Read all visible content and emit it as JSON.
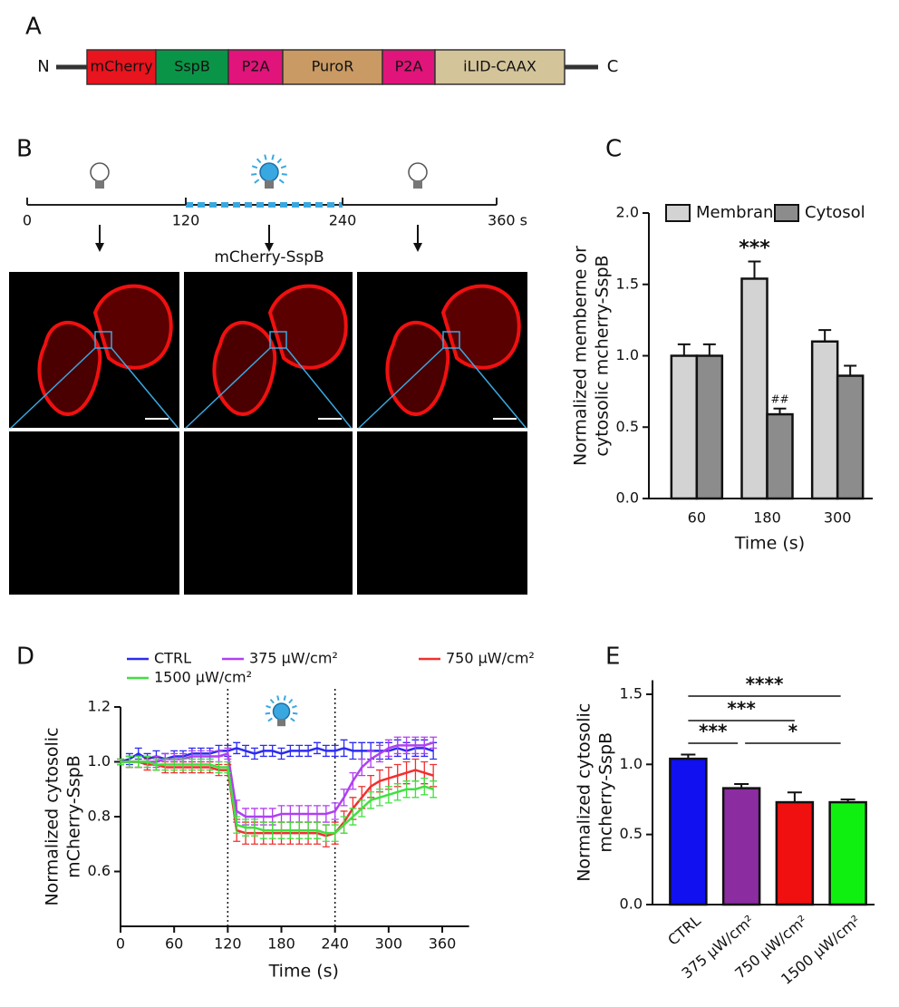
{
  "panel_labels": [
    "A",
    "B",
    "C",
    "D",
    "E"
  ],
  "construct": {
    "n": "N",
    "c": "C",
    "segments": [
      "mCherry",
      "SspB",
      "P2A",
      "PuroR",
      "P2A",
      "iLID-CAAX"
    ]
  },
  "timeline": {
    "ticks": [
      "0",
      "120",
      "240",
      "360 s"
    ],
    "image_label": "mCherry-SspB"
  },
  "chart_data": [
    {
      "type": "bar",
      "categories": [
        "60",
        "180",
        "300"
      ],
      "series": [
        {
          "name": "Membrane",
          "color": "#d3d3d3",
          "values": [
            1.0,
            1.54,
            1.1
          ],
          "errors": [
            0.08,
            0.12,
            0.08
          ]
        },
        {
          "name": "Cytosol",
          "color": "#8c8c8c",
          "values": [
            1.0,
            0.59,
            0.86
          ],
          "errors": [
            0.08,
            0.04,
            0.07
          ]
        }
      ],
      "ylim": [
        0,
        2
      ],
      "yticks": [
        {
          "value": 0,
          "label": "0.0"
        },
        0.5,
        {
          "value": 1,
          "label": "1.0"
        },
        1.5,
        {
          "value": 2,
          "label": "2.0"
        }
      ],
      "ylabel": [
        "Normalized memberne or",
        "cytosolic mcherry-SspB"
      ],
      "xlabel": "Time (s)",
      "annotations": [
        "***",
        "##"
      ],
      "legend": "top"
    },
    {
      "type": "line",
      "x": [
        0,
        10,
        20,
        30,
        40,
        50,
        60,
        70,
        80,
        90,
        100,
        110,
        120,
        130,
        140,
        150,
        160,
        170,
        180,
        190,
        200,
        210,
        220,
        230,
        240,
        250,
        260,
        270,
        280,
        290,
        300,
        310,
        320,
        330,
        340,
        350
      ],
      "series": [
        {
          "name": "CTRL",
          "color": "#2b2bf0",
          "values": [
            1.0,
            1.01,
            1.03,
            1.01,
            1.02,
            1.01,
            1.02,
            1.02,
            1.03,
            1.03,
            1.03,
            1.04,
            1.04,
            1.05,
            1.04,
            1.03,
            1.04,
            1.04,
            1.03,
            1.04,
            1.04,
            1.04,
            1.05,
            1.04,
            1.04,
            1.05,
            1.04,
            1.04,
            1.04,
            1.04,
            1.04,
            1.05,
            1.04,
            1.05,
            1.05,
            1.04
          ],
          "errors": [
            0.01,
            0.02,
            0.02,
            0.02,
            0.02,
            0.02,
            0.02,
            0.02,
            0.02,
            0.02,
            0.02,
            0.02,
            0.02,
            0.02,
            0.02,
            0.02,
            0.02,
            0.02,
            0.02,
            0.02,
            0.02,
            0.02,
            0.02,
            0.02,
            0.02,
            0.03,
            0.03,
            0.03,
            0.03,
            0.03,
            0.03,
            0.03,
            0.03,
            0.03,
            0.03,
            0.03
          ]
        },
        {
          "name": "375 μW/cm²",
          "color": "#b040f0",
          "values": [
            1.0,
            1.0,
            1.0,
            1.0,
            1.0,
            1.01,
            1.01,
            1.01,
            1.02,
            1.02,
            1.02,
            1.02,
            1.03,
            0.82,
            0.8,
            0.8,
            0.8,
            0.8,
            0.81,
            0.81,
            0.81,
            0.81,
            0.81,
            0.81,
            0.82,
            0.87,
            0.93,
            0.98,
            1.01,
            1.03,
            1.05,
            1.06,
            1.06,
            1.06,
            1.06,
            1.07
          ],
          "errors": [
            0.01,
            0.02,
            0.02,
            0.02,
            0.02,
            0.02,
            0.02,
            0.02,
            0.02,
            0.02,
            0.02,
            0.02,
            0.02,
            0.04,
            0.03,
            0.03,
            0.03,
            0.03,
            0.03,
            0.03,
            0.03,
            0.03,
            0.03,
            0.03,
            0.03,
            0.03,
            0.03,
            0.03,
            0.03,
            0.03,
            0.03,
            0.03,
            0.03,
            0.03,
            0.03,
            0.02
          ]
        },
        {
          "name": "750 μW/cm²",
          "color": "#f03030",
          "values": [
            1.0,
            1.0,
            1.0,
            0.99,
            0.99,
            0.98,
            0.98,
            0.98,
            0.98,
            0.98,
            0.98,
            0.97,
            0.97,
            0.75,
            0.74,
            0.74,
            0.74,
            0.74,
            0.74,
            0.74,
            0.74,
            0.74,
            0.74,
            0.73,
            0.74,
            0.78,
            0.83,
            0.87,
            0.91,
            0.93,
            0.94,
            0.95,
            0.96,
            0.97,
            0.96,
            0.95
          ],
          "errors": [
            0.01,
            0.02,
            0.02,
            0.02,
            0.02,
            0.02,
            0.02,
            0.02,
            0.02,
            0.02,
            0.02,
            0.02,
            0.02,
            0.04,
            0.04,
            0.04,
            0.04,
            0.04,
            0.04,
            0.04,
            0.04,
            0.04,
            0.04,
            0.04,
            0.04,
            0.04,
            0.04,
            0.04,
            0.04,
            0.04,
            0.04,
            0.04,
            0.04,
            0.04,
            0.04,
            0.04
          ]
        },
        {
          "name": "1500 μW/cm²",
          "color": "#40e040",
          "values": [
            1.0,
            1.0,
            1.0,
            1.0,
            0.99,
            0.99,
            0.99,
            0.99,
            0.99,
            0.99,
            0.99,
            0.98,
            0.98,
            0.77,
            0.76,
            0.76,
            0.75,
            0.75,
            0.75,
            0.75,
            0.75,
            0.75,
            0.75,
            0.74,
            0.74,
            0.77,
            0.8,
            0.83,
            0.86,
            0.87,
            0.88,
            0.89,
            0.9,
            0.9,
            0.91,
            0.9
          ],
          "errors": [
            0.01,
            0.02,
            0.02,
            0.02,
            0.02,
            0.02,
            0.02,
            0.02,
            0.02,
            0.02,
            0.02,
            0.02,
            0.02,
            0.03,
            0.03,
            0.03,
            0.03,
            0.03,
            0.03,
            0.03,
            0.03,
            0.03,
            0.03,
            0.03,
            0.03,
            0.03,
            0.03,
            0.03,
            0.03,
            0.03,
            0.03,
            0.03,
            0.03,
            0.03,
            0.03,
            0.03
          ]
        }
      ],
      "xlim": [
        0,
        390
      ],
      "xticks": [
        0,
        60,
        120,
        180,
        240,
        300,
        360
      ],
      "ylim": [
        0.4,
        1.2
      ],
      "yticks": [
        0.6,
        0.8,
        {
          "value": 1,
          "label": "1.0"
        },
        1.2
      ],
      "vlines": [
        120,
        240
      ],
      "ylabel": [
        "Normalized cytosolic",
        "mCherry-SspB"
      ],
      "xlabel": "Time (s)",
      "legend": "top"
    },
    {
      "type": "bar",
      "categories": [
        "CTRL",
        "375 μW/cm²",
        "750 μW/cm²",
        "1500 μW/cm²"
      ],
      "colors": [
        "#1010f0",
        "#8b2ca0",
        "#f01010",
        "#10f010"
      ],
      "values": [
        1.04,
        0.83,
        0.73,
        0.73
      ],
      "errors": [
        0.03,
        0.03,
        0.07,
        0.02
      ],
      "ylim": [
        0,
        1.6
      ],
      "yticks": [
        {
          "value": 0,
          "label": "0.0"
        },
        0.5,
        {
          "value": 1,
          "label": "1.0"
        },
        1.5
      ],
      "ylabel": [
        "Normalized cytosolic",
        "mcherry-SspB"
      ],
      "annotations": [
        "****",
        "***",
        "***",
        "*"
      ]
    }
  ]
}
